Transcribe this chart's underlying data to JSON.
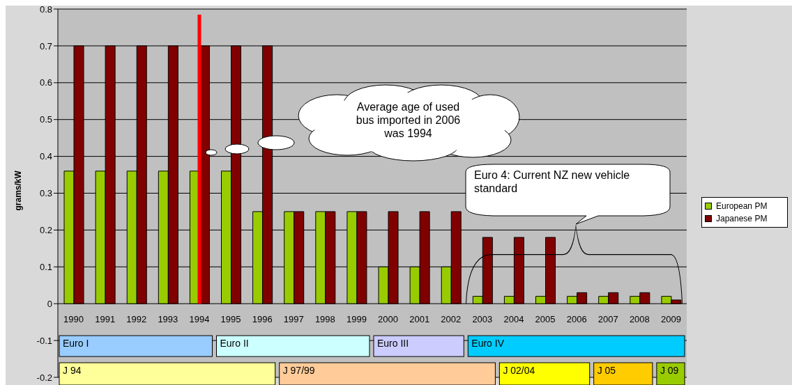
{
  "chart_data": {
    "type": "bar",
    "ylabel": "grams/kW",
    "categories": [
      "1990",
      "1991",
      "1992",
      "1993",
      "1994",
      "1995",
      "1996",
      "1997",
      "1998",
      "1999",
      "2000",
      "2001",
      "2002",
      "2003",
      "2004",
      "2005",
      "2006",
      "2007",
      "2008",
      "2009"
    ],
    "series": [
      {
        "name": "European PM",
        "color": "#99cc00",
        "values": [
          0.36,
          0.36,
          0.36,
          0.36,
          0.36,
          0.36,
          0.25,
          0.25,
          0.25,
          0.25,
          0.1,
          0.1,
          0.1,
          0.02,
          0.02,
          0.02,
          0.02,
          0.02,
          0.02,
          0.02
        ]
      },
      {
        "name": "Japanese PM",
        "color": "#800000",
        "values": [
          0.7,
          0.7,
          0.7,
          0.7,
          0.7,
          0.7,
          0.7,
          0.25,
          0.25,
          0.25,
          0.25,
          0.25,
          0.25,
          0.18,
          0.18,
          0.18,
          0.03,
          0.03,
          0.03,
          0.01
        ]
      }
    ],
    "ylim": [
      -0.2,
      0.8
    ],
    "yticks": [
      -0.2,
      -0.1,
      0,
      0.1,
      0.2,
      0.3,
      0.4,
      0.5,
      0.6,
      0.7,
      0.8
    ],
    "grid": "y",
    "legend": "right",
    "ref_lines": [
      {
        "axis": "x",
        "value": "1994",
        "color": "#ff0000"
      }
    ],
    "annotations": [
      "Average age of used bus imported in 2006 was 1994",
      "Euro 4: Current NZ new vehicle standard",
      "Euro I",
      "Euro II",
      "Euro III",
      "Euro IV",
      "J 94",
      "J 97/99",
      "J 02/04",
      "J 05",
      "J 09"
    ]
  }
}
